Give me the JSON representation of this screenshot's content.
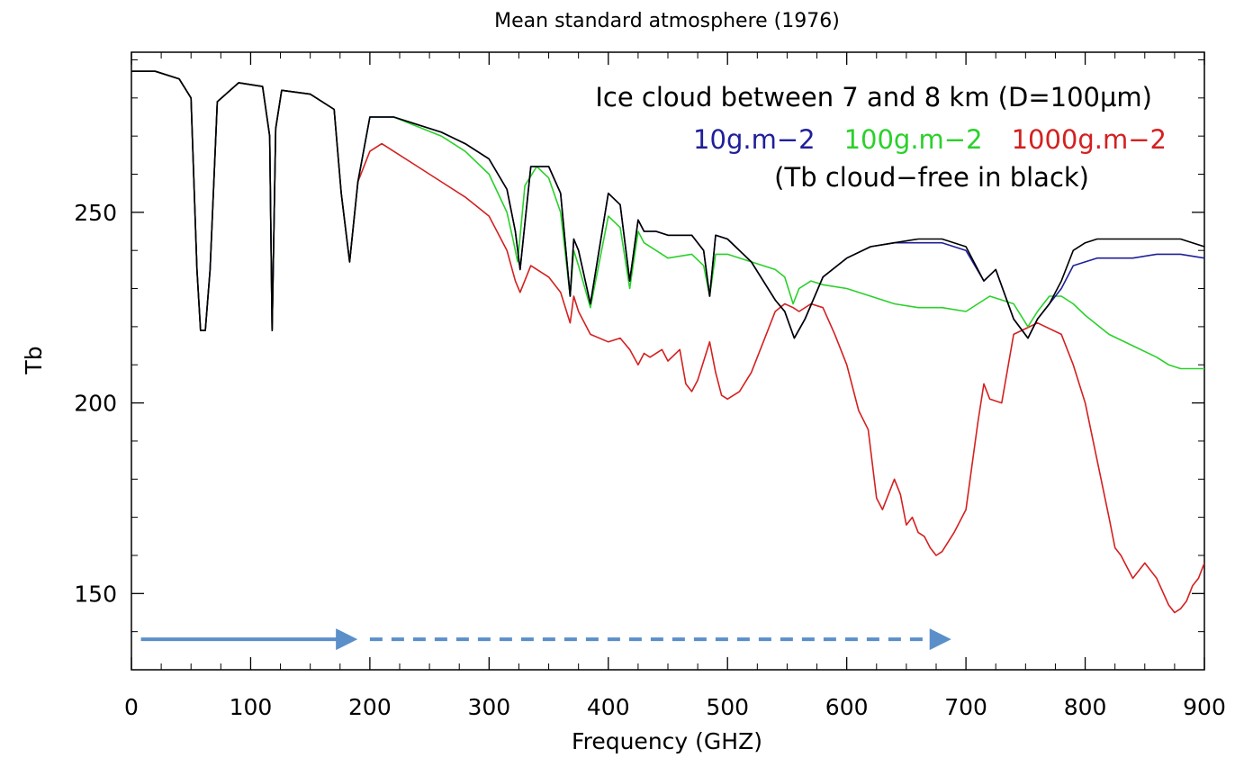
{
  "chart_data": {
    "type": "line",
    "title": "Mean standard atmosphere (1976)",
    "xlabel": "Frequency (GHZ)",
    "ylabel": "Tb",
    "xlim": [
      0,
      900
    ],
    "ylim": [
      130,
      292
    ],
    "x_ticks": [
      0,
      100,
      200,
      300,
      400,
      500,
      600,
      700,
      800,
      900
    ],
    "x_tick_labels": [
      "0",
      "100",
      "200",
      "300",
      "400",
      "500",
      "600",
      "700",
      "800",
      "900"
    ],
    "y_ticks": [
      150,
      200,
      250
    ],
    "y_tick_labels": [
      "150",
      "200",
      "250"
    ],
    "grid": false,
    "legend": {
      "header": "Ice cloud between 7 and 8 km (D=100µm)",
      "entries": [
        {
          "label": "10g.m−2",
          "color": "#1f1f9a"
        },
        {
          "label": "100g.m−2",
          "color": "#2ad12a"
        },
        {
          "label": "1000g.m−2",
          "color": "#d42020"
        }
      ],
      "note": "(Tb cloud−free in black)",
      "position": "top-right"
    },
    "colors": {
      "clear": "#000000",
      "g10": "#1f1f9a",
      "g100": "#2ad12a",
      "g1000": "#d42020",
      "arrow": "#5b8fca"
    },
    "series": [
      {
        "key": "g1000",
        "x": [
          0,
          20,
          40,
          50,
          55,
          58,
          62,
          66,
          72,
          90,
          110,
          116,
          118,
          121,
          126,
          150,
          170,
          176,
          183,
          190,
          200,
          210,
          220,
          240,
          260,
          280,
          300,
          315,
          322,
          326,
          335,
          350,
          360,
          368,
          371,
          375,
          385,
          400,
          410,
          418,
          425,
          430,
          435,
          445,
          450,
          460,
          465,
          470,
          475,
          485,
          490,
          495,
          500,
          510,
          520,
          530,
          540,
          548,
          555,
          560,
          570,
          580,
          590,
          600,
          610,
          618,
          625,
          630,
          640,
          645,
          650,
          655,
          660,
          665,
          670,
          675,
          680,
          690,
          700,
          710,
          715,
          720,
          730,
          740,
          760,
          780,
          790,
          800,
          810,
          820,
          825,
          830,
          835,
          840,
          850,
          860,
          870,
          875,
          880,
          885,
          890,
          895,
          900
        ],
        "y": [
          287,
          287,
          285,
          280,
          235,
          219,
          219,
          235,
          279,
          284,
          283,
          270,
          219,
          272,
          282,
          281,
          277,
          255,
          237,
          258,
          266,
          268,
          266,
          262,
          258,
          254,
          249,
          240,
          232,
          229,
          236,
          233,
          229,
          221,
          228,
          224,
          218,
          216,
          217,
          214,
          210,
          213,
          212,
          214,
          211,
          214,
          205,
          203,
          206,
          216,
          208,
          202,
          201,
          203,
          208,
          216,
          224,
          226,
          225,
          224,
          226,
          225,
          218,
          210,
          198,
          193,
          175,
          172,
          180,
          176,
          168,
          170,
          166,
          165,
          162,
          160,
          161,
          166,
          172,
          195,
          205,
          201,
          200,
          218,
          221,
          218,
          210,
          200,
          185,
          170,
          162,
          160,
          157,
          154,
          158,
          154,
          147,
          145,
          146,
          148,
          152,
          154,
          158
        ]
      },
      {
        "key": "g100",
        "x": [
          0,
          20,
          40,
          50,
          55,
          58,
          62,
          66,
          72,
          90,
          110,
          116,
          118,
          121,
          126,
          150,
          170,
          176,
          183,
          190,
          200,
          220,
          260,
          280,
          300,
          315,
          320,
          324,
          330,
          340,
          350,
          360,
          368,
          371,
          375,
          385,
          400,
          410,
          418,
          425,
          430,
          440,
          450,
          470,
          480,
          485,
          490,
          500,
          520,
          540,
          548,
          555,
          560,
          570,
          580,
          600,
          620,
          640,
          660,
          680,
          700,
          720,
          740,
          752,
          760,
          770,
          780,
          790,
          800,
          820,
          840,
          860,
          870,
          880,
          890,
          900
        ],
        "y": [
          287,
          287,
          285,
          280,
          235,
          219,
          219,
          235,
          279,
          284,
          283,
          270,
          219,
          272,
          282,
          281,
          277,
          255,
          237,
          258,
          275,
          275,
          270,
          266,
          260,
          250,
          243,
          237,
          257,
          262,
          259,
          250,
          228,
          240,
          236,
          225,
          249,
          246,
          230,
          245,
          242,
          240,
          238,
          239,
          236,
          228,
          239,
          239,
          237,
          235,
          233,
          226,
          230,
          232,
          231,
          230,
          228,
          226,
          225,
          225,
          224,
          228,
          226,
          220,
          224,
          228,
          228,
          226,
          223,
          218,
          215,
          212,
          210,
          209,
          209,
          209
        ]
      },
      {
        "key": "g10",
        "x": [
          0,
          20,
          40,
          50,
          55,
          58,
          62,
          66,
          72,
          90,
          110,
          116,
          118,
          121,
          126,
          150,
          170,
          176,
          183,
          190,
          200,
          220,
          260,
          280,
          300,
          315,
          322,
          326,
          335,
          350,
          360,
          368,
          371,
          375,
          385,
          400,
          410,
          418,
          425,
          430,
          440,
          450,
          470,
          480,
          485,
          490,
          500,
          520,
          540,
          548,
          556,
          565,
          580,
          600,
          620,
          640,
          660,
          680,
          700,
          715,
          725,
          740,
          752,
          760,
          770,
          780,
          790,
          800,
          810,
          820,
          840,
          860,
          880,
          900
        ],
        "y": [
          287,
          287,
          285,
          280,
          235,
          219,
          219,
          235,
          279,
          284,
          283,
          270,
          219,
          272,
          282,
          281,
          277,
          255,
          237,
          258,
          275,
          275,
          271,
          268,
          264,
          256,
          245,
          235,
          262,
          262,
          255,
          228,
          243,
          240,
          226,
          255,
          252,
          232,
          248,
          245,
          245,
          244,
          244,
          240,
          228,
          244,
          243,
          237,
          227,
          224,
          217,
          222,
          233,
          238,
          241,
          242,
          242,
          242,
          240,
          232,
          235,
          222,
          217,
          222,
          226,
          230,
          236,
          237,
          238,
          238,
          238,
          239,
          239,
          238
        ]
      },
      {
        "key": "clear",
        "x": [
          0,
          20,
          40,
          50,
          55,
          58,
          62,
          66,
          72,
          90,
          110,
          116,
          118,
          121,
          126,
          150,
          170,
          176,
          183,
          190,
          200,
          220,
          260,
          280,
          300,
          315,
          322,
          326,
          335,
          350,
          360,
          368,
          371,
          375,
          385,
          400,
          410,
          418,
          425,
          430,
          440,
          450,
          470,
          480,
          485,
          490,
          500,
          520,
          540,
          548,
          556,
          565,
          580,
          600,
          620,
          640,
          660,
          680,
          700,
          715,
          725,
          740,
          752,
          760,
          770,
          780,
          790,
          800,
          810,
          820,
          840,
          860,
          880,
          900
        ],
        "y": [
          287,
          287,
          285,
          280,
          235,
          219,
          219,
          235,
          279,
          284,
          283,
          270,
          219,
          272,
          282,
          281,
          277,
          255,
          237,
          258,
          275,
          275,
          271,
          268,
          264,
          256,
          245,
          235,
          262,
          262,
          255,
          228,
          243,
          240,
          226,
          255,
          252,
          232,
          248,
          245,
          245,
          244,
          244,
          240,
          228,
          244,
          243,
          237,
          227,
          224,
          217,
          222,
          233,
          238,
          241,
          242,
          243,
          243,
          241,
          232,
          235,
          222,
          217,
          222,
          226,
          232,
          240,
          242,
          243,
          243,
          243,
          243,
          243,
          241
        ]
      }
    ],
    "arrows": [
      {
        "x0": 8,
        "x1": 186,
        "y": 138,
        "style": "solid"
      },
      {
        "x0": 200,
        "x1": 684,
        "y": 138,
        "style": "dashed"
      }
    ]
  }
}
